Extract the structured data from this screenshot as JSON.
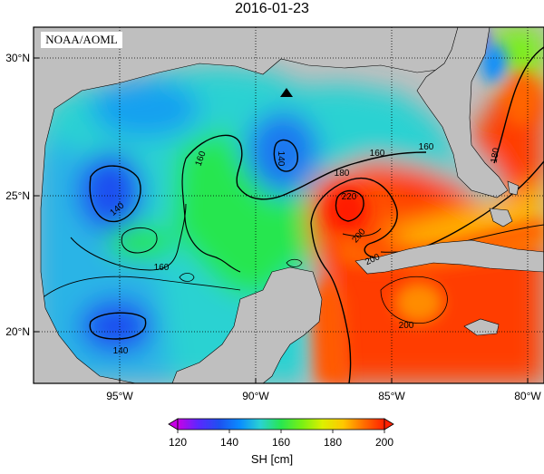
{
  "title": "2016-01-23",
  "credit": "NOAA/AOML",
  "map": {
    "lat_ticks": [
      "30°N",
      "25°N",
      "20°N"
    ],
    "lon_ticks": [
      "95°W",
      "90°W",
      "85°W",
      "80°W"
    ],
    "contour_labels": [
      {
        "value": "160"
      },
      {
        "value": "160"
      },
      {
        "value": "160"
      },
      {
        "value": "160"
      },
      {
        "value": "140"
      },
      {
        "value": "140"
      },
      {
        "value": "140"
      },
      {
        "value": "180"
      },
      {
        "value": "180"
      },
      {
        "value": "220"
      },
      {
        "value": "200"
      },
      {
        "value": "200"
      },
      {
        "value": "200"
      }
    ],
    "station_marker": "triangle-marker"
  },
  "colorbar": {
    "label": "SH [cm]",
    "ticks": [
      "120",
      "140",
      "160",
      "180",
      "200"
    ],
    "min": 120,
    "max": 200,
    "colors": [
      "#c800e6",
      "#5a28ff",
      "#1e50f0",
      "#0a8cff",
      "#2ad2d2",
      "#28e650",
      "#78f014",
      "#dcf000",
      "#ffc800",
      "#ff6e00",
      "#ff2000"
    ]
  }
}
